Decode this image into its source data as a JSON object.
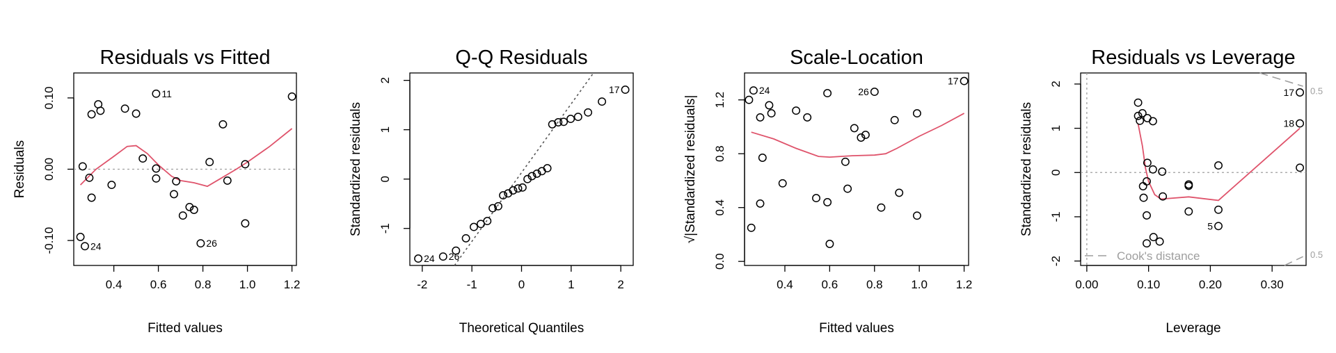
{
  "chart_data": [
    {
      "type": "scatter",
      "title": "Residuals vs Fitted",
      "xlabel": "Fitted values",
      "ylabel": "Residuals",
      "xlim": [
        0.22,
        1.22
      ],
      "ylim": [
        -0.135,
        0.135
      ],
      "xticks": [
        0.4,
        0.6,
        0.8,
        1.0,
        1.2
      ],
      "xtick_labels": [
        "0.4",
        "0.6",
        "0.8",
        "1.0",
        "1.2"
      ],
      "yticks": [
        -0.1,
        0.0,
        0.1
      ],
      "ytick_labels": [
        "-0.10",
        "0.00",
        "0.10"
      ],
      "ref_y": 0,
      "points": [
        {
          "x": 0.25,
          "y": -0.095,
          "label": ""
        },
        {
          "x": 0.27,
          "y": -0.108,
          "label": "24"
        },
        {
          "x": 0.26,
          "y": 0.004,
          "label": ""
        },
        {
          "x": 0.29,
          "y": -0.012,
          "label": ""
        },
        {
          "x": 0.3,
          "y": -0.04,
          "label": ""
        },
        {
          "x": 0.3,
          "y": 0.077,
          "label": ""
        },
        {
          "x": 0.33,
          "y": 0.091,
          "label": ""
        },
        {
          "x": 0.34,
          "y": 0.082,
          "label": ""
        },
        {
          "x": 0.39,
          "y": -0.022,
          "label": ""
        },
        {
          "x": 0.45,
          "y": 0.085,
          "label": ""
        },
        {
          "x": 0.5,
          "y": 0.078,
          "label": ""
        },
        {
          "x": 0.53,
          "y": 0.015,
          "label": ""
        },
        {
          "x": 0.59,
          "y": 0.106,
          "label": "11"
        },
        {
          "x": 0.59,
          "y": 0.001,
          "label": ""
        },
        {
          "x": 0.59,
          "y": -0.013,
          "label": ""
        },
        {
          "x": 0.67,
          "y": -0.035,
          "label": ""
        },
        {
          "x": 0.68,
          "y": -0.017,
          "label": ""
        },
        {
          "x": 0.71,
          "y": -0.065,
          "label": ""
        },
        {
          "x": 0.74,
          "y": -0.053,
          "label": ""
        },
        {
          "x": 0.76,
          "y": -0.057,
          "label": ""
        },
        {
          "x": 0.79,
          "y": -0.104,
          "label": "26"
        },
        {
          "x": 0.83,
          "y": 0.01,
          "label": ""
        },
        {
          "x": 0.89,
          "y": 0.063,
          "label": ""
        },
        {
          "x": 0.91,
          "y": -0.016,
          "label": ""
        },
        {
          "x": 0.99,
          "y": 0.007,
          "label": ""
        },
        {
          "x": 0.99,
          "y": -0.076,
          "label": ""
        },
        {
          "x": 1.2,
          "y": 0.102,
          "label": ""
        }
      ],
      "smooth": [
        [
          0.25,
          -0.022
        ],
        [
          0.32,
          0.0
        ],
        [
          0.4,
          0.018
        ],
        [
          0.46,
          0.032
        ],
        [
          0.5,
          0.033
        ],
        [
          0.55,
          0.022
        ],
        [
          0.6,
          0.006
        ],
        [
          0.66,
          -0.01
        ],
        [
          0.7,
          -0.016
        ],
        [
          0.76,
          -0.019
        ],
        [
          0.82,
          -0.024
        ],
        [
          0.88,
          -0.013
        ],
        [
          0.95,
          0.0
        ],
        [
          1.0,
          0.01
        ],
        [
          1.1,
          0.032
        ],
        [
          1.2,
          0.057
        ]
      ]
    },
    {
      "type": "scatter",
      "title": "Q-Q Residuals",
      "xlabel": "Theoretical Quantiles",
      "ylabel": "Standardized residuals",
      "xlim": [
        -2.25,
        2.25
      ],
      "ylim": [
        -1.75,
        2.15
      ],
      "xticks": [
        -2,
        -1,
        0,
        1,
        2
      ],
      "xtick_labels": [
        "-2",
        "-1",
        "0",
        "1",
        "2"
      ],
      "yticks": [
        -1,
        0,
        1,
        2
      ],
      "ytick_labels": [
        "-1",
        "0",
        "1",
        "2"
      ],
      "ref_line": [
        [
          -1.35,
          -1.75
        ],
        [
          1.45,
          2.15
        ]
      ],
      "points": [
        {
          "x": -2.08,
          "y": -1.61,
          "label": "24"
        },
        {
          "x": -1.58,
          "y": -1.57,
          "label": "26"
        },
        {
          "x": -1.32,
          "y": -1.45,
          "label": ""
        },
        {
          "x": -1.12,
          "y": -1.2,
          "label": ""
        },
        {
          "x": -0.96,
          "y": -0.97,
          "label": ""
        },
        {
          "x": -0.82,
          "y": -0.91,
          "label": ""
        },
        {
          "x": -0.69,
          "y": -0.85,
          "label": ""
        },
        {
          "x": -0.58,
          "y": -0.59,
          "label": ""
        },
        {
          "x": -0.47,
          "y": -0.55,
          "label": ""
        },
        {
          "x": -0.37,
          "y": -0.33,
          "label": ""
        },
        {
          "x": -0.27,
          "y": -0.29,
          "label": ""
        },
        {
          "x": -0.17,
          "y": -0.23,
          "label": ""
        },
        {
          "x": -0.07,
          "y": -0.19,
          "label": ""
        },
        {
          "x": 0.02,
          "y": -0.17,
          "label": ""
        },
        {
          "x": 0.12,
          "y": 0.0,
          "label": ""
        },
        {
          "x": 0.21,
          "y": 0.06,
          "label": ""
        },
        {
          "x": 0.31,
          "y": 0.11,
          "label": ""
        },
        {
          "x": 0.41,
          "y": 0.16,
          "label": ""
        },
        {
          "x": 0.52,
          "y": 0.22,
          "label": ""
        },
        {
          "x": 0.62,
          "y": 1.11,
          "label": ""
        },
        {
          "x": 0.74,
          "y": 1.15,
          "label": ""
        },
        {
          "x": 0.85,
          "y": 1.16,
          "label": ""
        },
        {
          "x": 0.99,
          "y": 1.22,
          "label": ""
        },
        {
          "x": 1.14,
          "y": 1.26,
          "label": ""
        },
        {
          "x": 1.34,
          "y": 1.35,
          "label": ""
        },
        {
          "x": 1.62,
          "y": 1.57,
          "label": ""
        },
        {
          "x": 2.09,
          "y": 1.81,
          "label": "17"
        }
      ]
    },
    {
      "type": "scatter",
      "title": "Scale-Location",
      "xlabel": "Fitted values",
      "ylabel": "√|Standardized residuals|",
      "xlim": [
        0.22,
        1.22
      ],
      "ylim": [
        -0.03,
        1.4
      ],
      "xticks": [
        0.4,
        0.6,
        0.8,
        1.0,
        1.2
      ],
      "xtick_labels": [
        "0.4",
        "0.6",
        "0.8",
        "1.0",
        "1.2"
      ],
      "yticks": [
        0.0,
        0.4,
        0.8,
        1.2
      ],
      "ytick_labels": [
        "0.0",
        "0.4",
        "0.8",
        "1.2"
      ],
      "points": [
        {
          "x": 0.24,
          "y": 1.2,
          "label": ""
        },
        {
          "x": 0.26,
          "y": 1.27,
          "label": "24"
        },
        {
          "x": 0.25,
          "y": 0.25,
          "label": ""
        },
        {
          "x": 0.29,
          "y": 1.07,
          "label": ""
        },
        {
          "x": 0.29,
          "y": 0.43,
          "label": ""
        },
        {
          "x": 0.3,
          "y": 0.77,
          "label": ""
        },
        {
          "x": 0.33,
          "y": 1.16,
          "label": ""
        },
        {
          "x": 0.34,
          "y": 1.1,
          "label": ""
        },
        {
          "x": 0.39,
          "y": 0.58,
          "label": ""
        },
        {
          "x": 0.45,
          "y": 1.12,
          "label": ""
        },
        {
          "x": 0.5,
          "y": 1.07,
          "label": ""
        },
        {
          "x": 0.54,
          "y": 0.47,
          "label": ""
        },
        {
          "x": 0.59,
          "y": 1.25,
          "label": ""
        },
        {
          "x": 0.59,
          "y": 0.44,
          "label": ""
        },
        {
          "x": 0.6,
          "y": 0.13,
          "label": ""
        },
        {
          "x": 0.67,
          "y": 0.74,
          "label": ""
        },
        {
          "x": 0.68,
          "y": 0.54,
          "label": ""
        },
        {
          "x": 0.71,
          "y": 0.99,
          "label": ""
        },
        {
          "x": 0.74,
          "y": 0.92,
          "label": ""
        },
        {
          "x": 0.76,
          "y": 0.94,
          "label": ""
        },
        {
          "x": 0.8,
          "y": 1.26,
          "label": "26"
        },
        {
          "x": 0.83,
          "y": 0.4,
          "label": ""
        },
        {
          "x": 0.89,
          "y": 1.05,
          "label": ""
        },
        {
          "x": 0.91,
          "y": 0.51,
          "label": ""
        },
        {
          "x": 0.99,
          "y": 1.1,
          "label": ""
        },
        {
          "x": 0.99,
          "y": 0.34,
          "label": ""
        },
        {
          "x": 1.2,
          "y": 1.34,
          "label": "17"
        }
      ],
      "smooth": [
        [
          0.25,
          0.96
        ],
        [
          0.35,
          0.91
        ],
        [
          0.45,
          0.84
        ],
        [
          0.55,
          0.78
        ],
        [
          0.6,
          0.775
        ],
        [
          0.7,
          0.785
        ],
        [
          0.8,
          0.79
        ],
        [
          0.85,
          0.8
        ],
        [
          0.9,
          0.84
        ],
        [
          1.0,
          0.93
        ],
        [
          1.1,
          1.01
        ],
        [
          1.2,
          1.1
        ]
      ]
    },
    {
      "type": "scatter",
      "title": "Residuals vs Leverage",
      "xlabel": "Leverage",
      "ylabel": "Standardized residuals",
      "xlim": [
        -0.01,
        0.355
      ],
      "ylim": [
        -2.1,
        2.25
      ],
      "xticks": [
        0.0,
        0.1,
        0.2,
        0.3
      ],
      "xtick_labels": [
        "0.00",
        "0.10",
        "0.20",
        "0.30"
      ],
      "yticks": [
        -2,
        -1,
        0,
        1,
        2
      ],
      "ytick_labels": [
        "-2",
        "-1",
        "0",
        "1",
        "2"
      ],
      "ref_x": 0,
      "ref_y": 0,
      "legend": {
        "text": "Cook's distance",
        "position": "bottom-left"
      },
      "cook_labels": [
        {
          "text": "0.5",
          "y": 1.85
        },
        {
          "text": "0.5",
          "y": -1.85
        }
      ],
      "cook_top": [
        [
          0.28,
          2.25
        ],
        [
          0.35,
          1.95
        ]
      ],
      "cook_bottom": [
        [
          0.32,
          -2.1
        ],
        [
          0.35,
          -1.9
        ]
      ],
      "points": [
        {
          "x": 0.083,
          "y": 1.58,
          "label": ""
        },
        {
          "x": 0.083,
          "y": 1.28,
          "label": ""
        },
        {
          "x": 0.086,
          "y": 1.17,
          "label": ""
        },
        {
          "x": 0.09,
          "y": 1.34,
          "label": ""
        },
        {
          "x": 0.098,
          "y": 1.23,
          "label": ""
        },
        {
          "x": 0.107,
          "y": 1.16,
          "label": ""
        },
        {
          "x": 0.098,
          "y": 0.22,
          "label": ""
        },
        {
          "x": 0.107,
          "y": 0.07,
          "label": ""
        },
        {
          "x": 0.122,
          "y": 0.02,
          "label": ""
        },
        {
          "x": 0.097,
          "y": -0.2,
          "label": ""
        },
        {
          "x": 0.091,
          "y": -0.31,
          "label": ""
        },
        {
          "x": 0.092,
          "y": -0.57,
          "label": ""
        },
        {
          "x": 0.123,
          "y": -0.54,
          "label": ""
        },
        {
          "x": 0.097,
          "y": -0.97,
          "label": ""
        },
        {
          "x": 0.108,
          "y": -1.46,
          "label": ""
        },
        {
          "x": 0.118,
          "y": -1.56,
          "label": ""
        },
        {
          "x": 0.097,
          "y": -1.6,
          "label": ""
        },
        {
          "x": 0.165,
          "y": -0.27,
          "label": ""
        },
        {
          "x": 0.165,
          "y": -0.3,
          "label": ""
        },
        {
          "x": 0.165,
          "y": -0.88,
          "label": ""
        },
        {
          "x": 0.213,
          "y": 0.16,
          "label": ""
        },
        {
          "x": 0.213,
          "y": -0.84,
          "label": ""
        },
        {
          "x": 0.213,
          "y": -1.21,
          "label": "5"
        },
        {
          "x": 0.345,
          "y": 1.81,
          "label": "17"
        },
        {
          "x": 0.345,
          "y": 1.11,
          "label": "18"
        },
        {
          "x": 0.345,
          "y": 0.11,
          "label": ""
        }
      ],
      "smooth": [
        [
          0.083,
          1.1
        ],
        [
          0.09,
          0.6
        ],
        [
          0.095,
          0.1
        ],
        [
          0.1,
          -0.2
        ],
        [
          0.11,
          -0.5
        ],
        [
          0.12,
          -0.6
        ],
        [
          0.165,
          -0.55
        ],
        [
          0.213,
          -0.63
        ],
        [
          0.345,
          1.0
        ]
      ]
    }
  ]
}
